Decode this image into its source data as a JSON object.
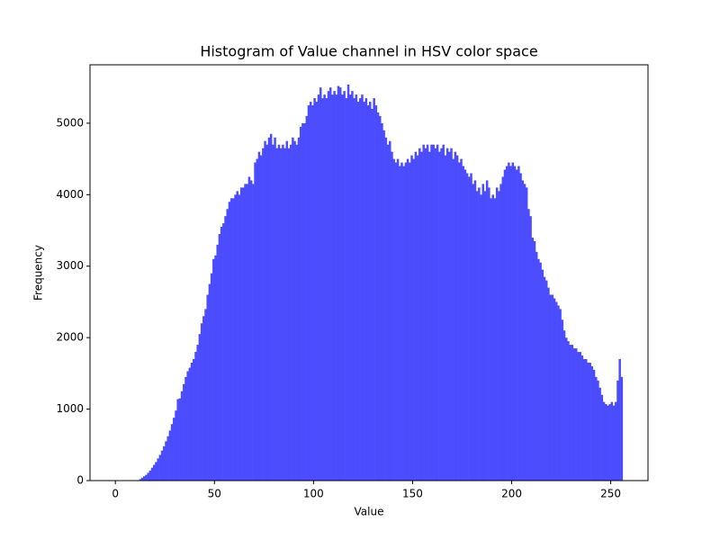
{
  "chart_data": {
    "type": "histogram",
    "title": "Histogram of Value channel in HSV color space",
    "x_label": "Value",
    "y_label": "Frequency",
    "color": "#4c4cff",
    "bins": [
      0,
      1,
      2,
      3,
      4,
      5,
      6,
      7,
      8,
      9,
      10,
      11,
      12,
      13,
      14,
      15,
      16,
      17,
      18,
      19,
      20,
      21,
      22,
      23,
      24,
      25,
      26,
      27,
      28,
      29,
      30,
      31,
      32,
      33,
      34,
      35,
      36,
      37,
      38,
      39,
      40,
      41,
      42,
      43,
      44,
      45,
      46,
      47,
      48,
      49,
      50,
      51,
      52,
      53,
      54,
      55,
      56,
      57,
      58,
      59,
      60,
      61,
      62,
      63,
      64,
      65,
      66,
      67,
      68,
      69,
      70,
      71,
      72,
      73,
      74,
      75,
      76,
      77,
      78,
      79,
      80,
      81,
      82,
      83,
      84,
      85,
      86,
      87,
      88,
      89,
      90,
      91,
      92,
      93,
      94,
      95,
      96,
      97,
      98,
      99,
      100,
      101,
      102,
      103,
      104,
      105,
      106,
      107,
      108,
      109,
      110,
      111,
      112,
      113,
      114,
      115,
      116,
      117,
      118,
      119,
      120,
      121,
      122,
      123,
      124,
      125,
      126,
      127,
      128,
      129,
      130,
      131,
      132,
      133,
      134,
      135,
      136,
      137,
      138,
      139,
      140,
      141,
      142,
      143,
      144,
      145,
      146,
      147,
      148,
      149,
      150,
      151,
      152,
      153,
      154,
      155,
      156,
      157,
      158,
      159,
      160,
      161,
      162,
      163,
      164,
      165,
      166,
      167,
      168,
      169,
      170,
      171,
      172,
      173,
      174,
      175,
      176,
      177,
      178,
      179,
      180,
      181,
      182,
      183,
      184,
      185,
      186,
      187,
      188,
      189,
      190,
      191,
      192,
      193,
      194,
      195,
      196,
      197,
      198,
      199,
      200,
      201,
      202,
      203,
      204,
      205,
      206,
      207,
      208,
      209,
      210,
      211,
      212,
      213,
      214,
      215,
      216,
      217,
      218,
      219,
      220,
      221,
      222,
      223,
      224,
      225,
      226,
      227,
      228,
      229,
      230,
      231,
      232,
      233,
      234,
      235,
      236,
      237,
      238,
      239,
      240,
      241,
      242,
      243,
      244,
      245,
      246,
      247,
      248,
      249,
      250,
      251,
      252,
      253,
      254,
      255,
      256
    ],
    "values": [
      0,
      0,
      0,
      0,
      0,
      0,
      0,
      0,
      0,
      0,
      0,
      0,
      20,
      40,
      60,
      80,
      110,
      140,
      180,
      220,
      260,
      310,
      360,
      420,
      480,
      550,
      620,
      700,
      790,
      880,
      980,
      1140,
      1150,
      1250,
      1350,
      1450,
      1530,
      1580,
      1650,
      1700,
      1800,
      1900,
      2050,
      2200,
      2300,
      2400,
      2600,
      2750,
      2900,
      3100,
      3150,
      3300,
      3450,
      3550,
      3600,
      3700,
      3800,
      3900,
      3950,
      3950,
      4000,
      4050,
      4000,
      4100,
      4100,
      4150,
      4150,
      4250,
      4200,
      4150,
      4450,
      4500,
      4600,
      4550,
      4650,
      4750,
      4700,
      4800,
      4850,
      4700,
      4800,
      4650,
      4700,
      4650,
      4700,
      4650,
      4750,
      4650,
      4700,
      4800,
      4750,
      4700,
      4800,
      4950,
      5000,
      5000,
      5100,
      5250,
      5300,
      5250,
      5350,
      5300,
      5400,
      5500,
      5350,
      5400,
      5350,
      5450,
      5500,
      5400,
      5450,
      5400,
      5520,
      5500,
      5400,
      5450,
      5350,
      5540,
      5400,
      5450,
      5350,
      5400,
      5300,
      5350,
      5400,
      5300,
      5350,
      5250,
      5300,
      5200,
      5350,
      5250,
      5150,
      5100,
      5000,
      4900,
      4800,
      4700,
      4750,
      4600,
      4500,
      4450,
      4500,
      4400,
      4450,
      4400,
      4450,
      4500,
      4450,
      4550,
      4500,
      4600,
      4550,
      4650,
      4600,
      4700,
      4650,
      4700,
      4600,
      4700,
      4700,
      4650,
      4700,
      4600,
      4650,
      4700,
      4550,
      4650,
      4600,
      4650,
      4500,
      4600,
      4550,
      4450,
      4500,
      4400,
      4350,
      4300,
      4250,
      4300,
      4150,
      4200,
      4050,
      4100,
      4000,
      4150,
      4050,
      4200,
      4100,
      3950,
      4000,
      3950,
      4100,
      4050,
      4150,
      4250,
      4350,
      4400,
      4450,
      4400,
      4450,
      4400,
      4350,
      4400,
      4300,
      4200,
      4150,
      4100,
      3800,
      3700,
      3400,
      3350,
      3200,
      3100,
      3050,
      2950,
      2850,
      2800,
      2700,
      2600,
      2600,
      2550,
      2500,
      2450,
      2400,
      2250,
      2100,
      2000,
      1950,
      1900,
      1900,
      1850,
      1850,
      1800,
      1800,
      1750,
      1700,
      1700,
      1650,
      1650,
      1600,
      1550,
      1450,
      1400,
      1300,
      1200,
      1100,
      1070,
      1050,
      1070,
      1100,
      1050,
      1100,
      1400,
      1700,
      1450
    ],
    "xlim": [
      -12.8,
      268.8
    ],
    "xticks": [
      0,
      50,
      100,
      150,
      200,
      250
    ],
    "ylim": [
      0,
      5817
    ],
    "yticks": [
      0,
      1000,
      2000,
      3000,
      4000,
      5000
    ]
  }
}
